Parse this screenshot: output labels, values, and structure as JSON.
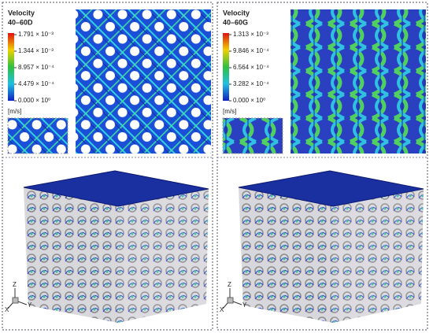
{
  "panels": [
    {
      "title": "Velocity",
      "subtitle": "40–60D",
      "legend": {
        "labels": [
          "1.791 × 10⁻³",
          "1.344 × 10⁻³",
          "8.957 × 10⁻⁴",
          "4.479 × 10⁻⁴",
          "0.000 × 10⁰"
        ],
        "unit": "[m/s]"
      },
      "axes": {
        "z": "Z",
        "y": "Y",
        "x": "X"
      }
    },
    {
      "title": "Velocity",
      "subtitle": "40–60G",
      "legend": {
        "labels": [
          "1.313 × 10⁻³",
          "9.846 × 10⁻⁴",
          "6.564 × 10⁻⁴",
          "3.282 × 10⁻⁴",
          "0.000 × 10⁰"
        ],
        "unit": "[m/s]"
      },
      "axes": {
        "z": "Z",
        "y": "Y",
        "x": "X"
      }
    }
  ]
}
